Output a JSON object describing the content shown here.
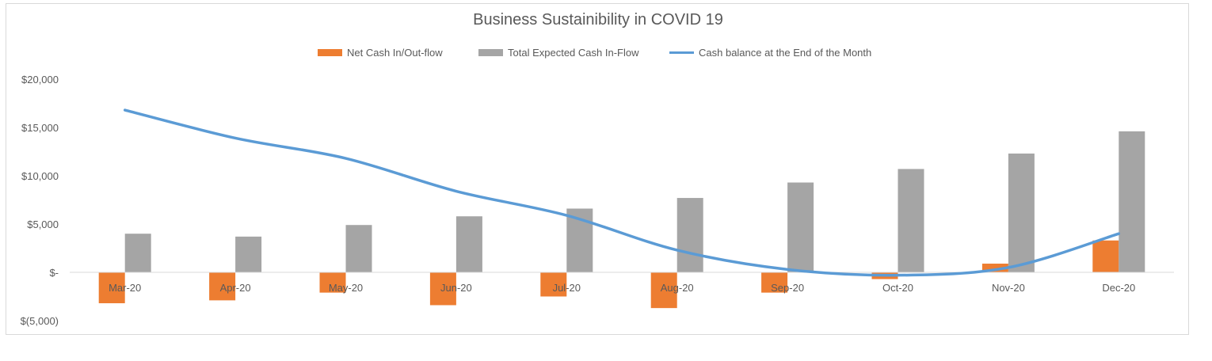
{
  "chart_data": {
    "type": "bar",
    "title": "Business Sustainibility in COVID 19",
    "categories": [
      "Mar-20",
      "Apr-20",
      "May-20",
      "Jun-20",
      "Jul-20",
      "Aug-20",
      "Sep-20",
      "Oct-20",
      "Nov-20",
      "Dec-20"
    ],
    "series": [
      {
        "name": "Net Cash In/Out-flow",
        "type": "bar",
        "color": "#ed7d31",
        "values": [
          -3200,
          -2900,
          -2100,
          -3400,
          -2500,
          -3700,
          -2100,
          -700,
          900,
          3300
        ]
      },
      {
        "name": "Total Expected Cash In-Flow",
        "type": "bar",
        "color": "#a5a5a5",
        "values": [
          4000,
          3700,
          4900,
          5800,
          6600,
          7700,
          9300,
          10700,
          12300,
          14600
        ]
      },
      {
        "name": "Cash balance at the End of the Month",
        "type": "line",
        "color": "#5b9bd5",
        "values": [
          16800,
          13900,
          11800,
          8400,
          5900,
          2300,
          300,
          -300,
          500,
          4000
        ]
      }
    ],
    "y_ticks": [
      {
        "value": 20000,
        "label": "$20,000"
      },
      {
        "value": 15000,
        "label": "$15,000"
      },
      {
        "value": 10000,
        "label": "$10,000"
      },
      {
        "value": 5000,
        "label": "$5,000"
      },
      {
        "value": 0,
        "label": "$-"
      },
      {
        "value": -5000,
        "label": "$(5,000)"
      }
    ],
    "ylim": [
      -5000,
      20000
    ],
    "grid": false,
    "legend_position": "top"
  }
}
